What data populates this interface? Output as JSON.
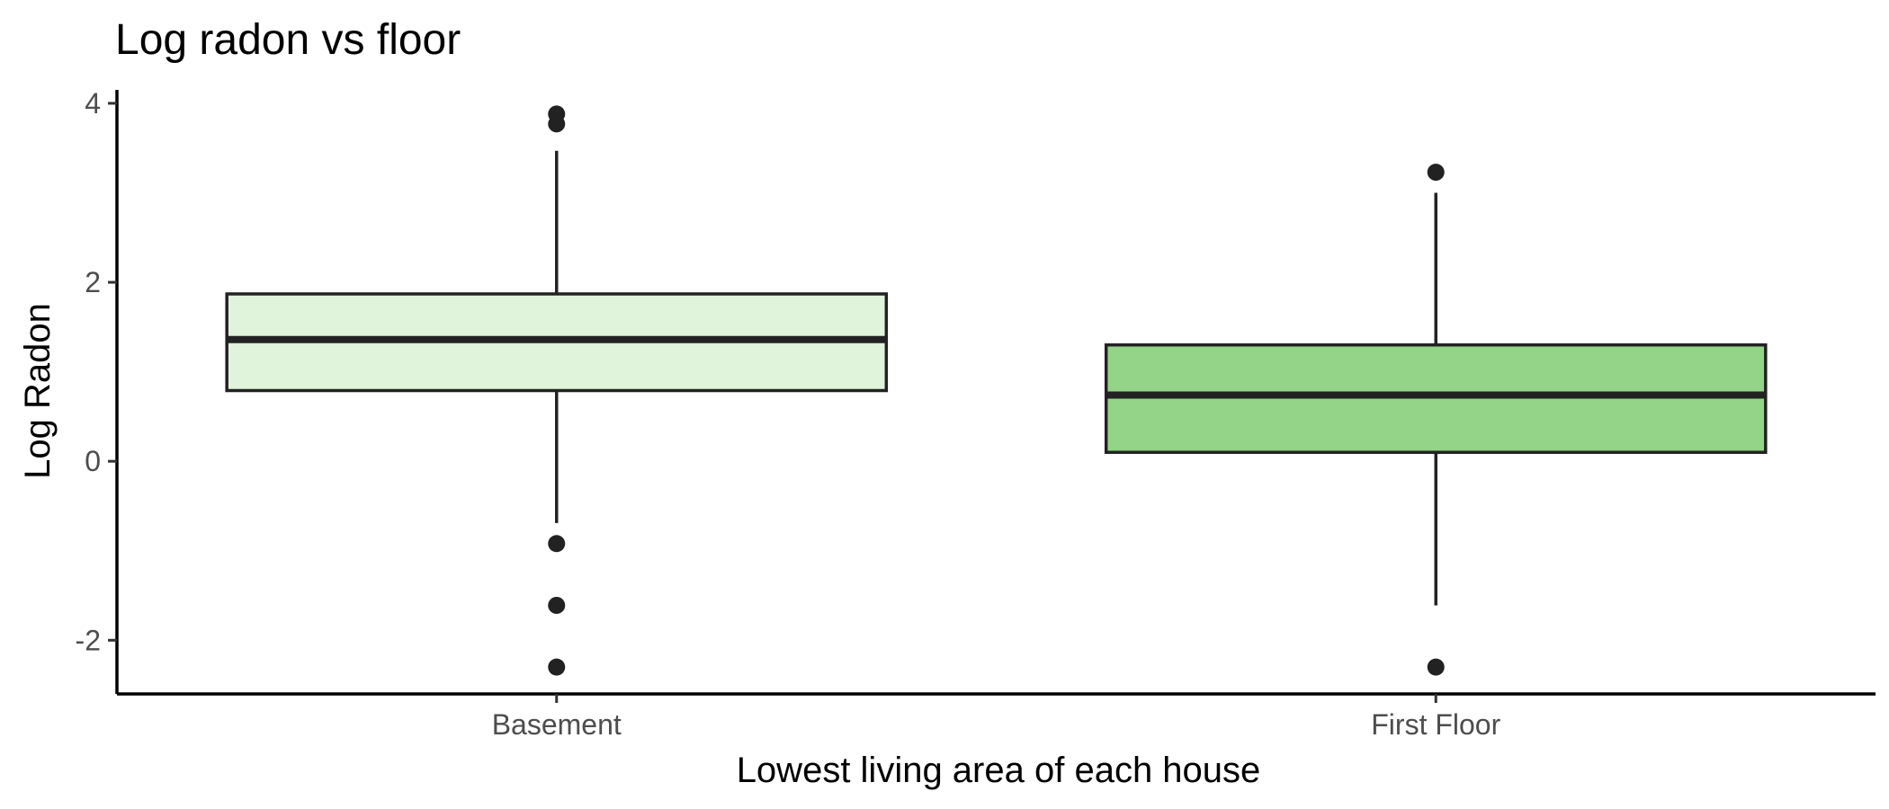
{
  "chart_data": {
    "type": "boxplot",
    "title": "Log radon vs floor",
    "xlabel": "Lowest living area of each house",
    "ylabel": "Log Radon",
    "categories": [
      "Basement",
      "First Floor"
    ],
    "ylim": [
      -2.6,
      4.15
    ],
    "yticks": [
      -2,
      0,
      2,
      4
    ],
    "grid": false,
    "legend": "none",
    "colors": {
      "Basement": "#e0f3db",
      "First Floor": "#93d488"
    },
    "boxes": [
      {
        "category": "Basement",
        "whisker_low": -0.69,
        "q1": 0.79,
        "median": 1.36,
        "q3": 1.87,
        "whisker_high": 3.47,
        "outliers": [
          3.88,
          3.77,
          -0.92,
          -1.61,
          -2.3
        ]
      },
      {
        "category": "First Floor",
        "whisker_low": -1.61,
        "q1": 0.1,
        "median": 0.74,
        "q3": 1.3,
        "whisker_high": 3.0,
        "outliers": [
          3.23,
          -2.3
        ]
      }
    ]
  }
}
